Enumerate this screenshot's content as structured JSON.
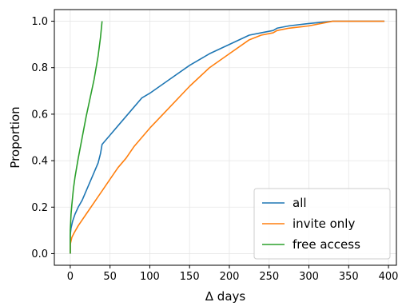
{
  "chart_data": {
    "type": "line",
    "xlabel": "Δ days",
    "ylabel": "Proportion",
    "xlim": [
      -20,
      410
    ],
    "ylim": [
      -0.05,
      1.05
    ],
    "xticks": [
      0,
      50,
      100,
      150,
      200,
      250,
      300,
      350,
      400
    ],
    "yticks": [
      0.0,
      0.2,
      0.4,
      0.6,
      0.8,
      1.0
    ],
    "xtick_labels": [
      "0",
      "50",
      "100",
      "150",
      "200",
      "250",
      "300",
      "350",
      "400"
    ],
    "ytick_labels": [
      "0.0",
      "0.2",
      "0.4",
      "0.6",
      "0.8",
      "1.0"
    ],
    "grid": true,
    "legend_position": "lower-right",
    "series": [
      {
        "name": "all",
        "color": "#1f77b4",
        "x": [
          0,
          0,
          1,
          3,
          6,
          10,
          15,
          20,
          25,
          30,
          35,
          38,
          40,
          50,
          60,
          70,
          80,
          90,
          100,
          125,
          150,
          175,
          200,
          225,
          240,
          255,
          260,
          275,
          300,
          330,
          395
        ],
        "y": [
          0.0,
          0.08,
          0.11,
          0.14,
          0.17,
          0.2,
          0.23,
          0.27,
          0.31,
          0.35,
          0.39,
          0.43,
          0.47,
          0.51,
          0.55,
          0.59,
          0.63,
          0.67,
          0.69,
          0.75,
          0.81,
          0.86,
          0.9,
          0.94,
          0.95,
          0.96,
          0.97,
          0.98,
          0.99,
          1.0,
          1.0
        ]
      },
      {
        "name": "invite only",
        "color": "#ff7f0e",
        "x": [
          0,
          0,
          2,
          5,
          10,
          20,
          30,
          40,
          50,
          60,
          70,
          80,
          90,
          100,
          125,
          150,
          175,
          200,
          225,
          240,
          255,
          260,
          275,
          300,
          330,
          395
        ],
        "y": [
          0.0,
          0.04,
          0.07,
          0.09,
          0.12,
          0.17,
          0.22,
          0.27,
          0.32,
          0.37,
          0.41,
          0.46,
          0.5,
          0.54,
          0.63,
          0.72,
          0.8,
          0.86,
          0.92,
          0.94,
          0.95,
          0.96,
          0.97,
          0.98,
          1.0,
          1.0
        ]
      },
      {
        "name": "free access",
        "color": "#2ca02c",
        "x": [
          0,
          0,
          1,
          2,
          4,
          6,
          8,
          10,
          15,
          20,
          25,
          30,
          35,
          38,
          40
        ],
        "y": [
          0.0,
          0.1,
          0.17,
          0.21,
          0.28,
          0.33,
          0.37,
          0.41,
          0.5,
          0.59,
          0.67,
          0.75,
          0.85,
          0.93,
          1.0
        ]
      }
    ]
  }
}
